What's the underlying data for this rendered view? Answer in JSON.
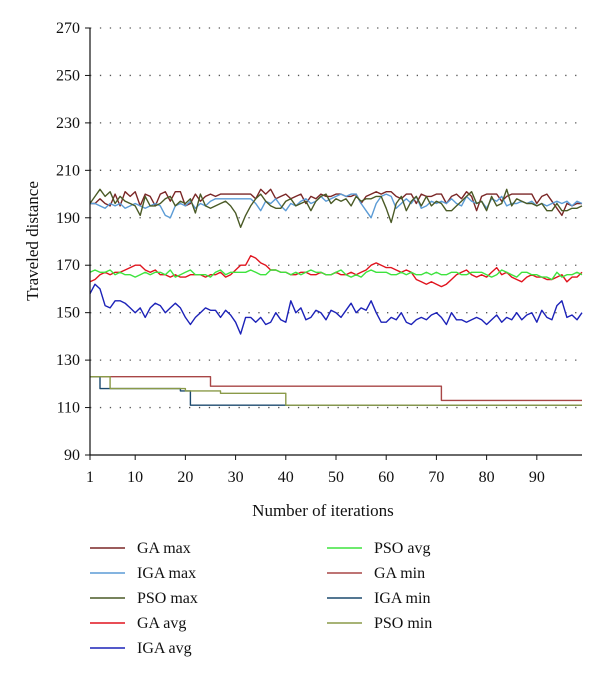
{
  "chart_data": {
    "type": "line",
    "title": "",
    "xlabel": "Number of iterations",
    "ylabel": "Traveled distance",
    "xlim": [
      1,
      99
    ],
    "ylim": [
      90,
      270
    ],
    "xticks": [
      1,
      10,
      20,
      30,
      40,
      50,
      60,
      70,
      80,
      90
    ],
    "yticks": [
      90,
      110,
      130,
      150,
      170,
      190,
      210,
      230,
      250,
      270
    ],
    "grid": "dotted horizontal",
    "legend_position": "bottom",
    "series": [
      {
        "name": "GA max",
        "color": "#7a2626",
        "values": [
          196,
          196,
          198,
          196,
          195,
          200,
          195,
          201,
          199,
          201,
          195,
          200,
          199,
          195,
          200,
          201,
          197,
          201,
          201,
          195,
          196,
          200,
          197,
          199,
          200,
          199,
          200,
          200,
          200,
          200,
          200,
          200,
          200,
          198,
          202,
          200,
          202,
          198,
          199,
          200,
          198,
          199,
          200,
          196,
          199,
          198,
          200,
          199,
          199,
          200,
          200,
          199,
          199,
          200,
          196,
          199,
          200,
          201,
          200,
          201,
          201,
          199,
          198,
          200,
          200,
          196,
          200,
          199,
          199,
          200,
          200,
          196,
          199,
          200,
          198,
          201,
          199,
          193,
          199,
          200,
          200,
          200,
          197,
          199,
          200,
          200,
          200,
          200,
          200,
          196,
          199,
          200,
          197,
          194,
          191,
          196,
          195,
          196,
          196
        ]
      },
      {
        "name": "IGA max",
        "color": "#5b9bd5",
        "values": [
          196,
          196,
          195,
          194,
          196,
          195,
          196,
          194,
          195,
          196,
          195,
          194,
          195,
          196,
          195,
          191,
          190,
          195,
          196,
          195,
          197,
          194,
          196,
          195,
          197,
          198,
          198,
          198,
          198,
          198,
          198,
          198,
          198,
          196,
          193,
          197,
          196,
          198,
          195,
          193,
          196,
          195,
          197,
          198,
          196,
          197,
          199,
          197,
          198,
          199,
          200,
          199,
          200,
          200,
          196,
          193,
          190,
          196,
          199,
          200,
          199,
          194,
          196,
          198,
          196,
          199,
          194,
          195,
          197,
          196,
          197,
          196,
          198,
          196,
          195,
          199,
          197,
          196,
          197,
          194,
          198,
          197,
          199,
          195,
          196,
          196,
          197,
          196,
          197,
          195,
          196,
          195,
          196,
          197,
          196,
          197,
          195,
          197,
          196
        ]
      },
      {
        "name": "PSO max",
        "color": "#4a5a26",
        "values": [
          196,
          199,
          202,
          199,
          201,
          196,
          199,
          197,
          196,
          195,
          191,
          199,
          195,
          195,
          196,
          198,
          199,
          195,
          197,
          196,
          198,
          192,
          200,
          195,
          194,
          195,
          196,
          197,
          195,
          192,
          186,
          191,
          195,
          198,
          200,
          197,
          195,
          194,
          194,
          197,
          198,
          195,
          196,
          197,
          193,
          197,
          199,
          200,
          196,
          198,
          197,
          198,
          195,
          199,
          197,
          198,
          198,
          199,
          199,
          194,
          188,
          196,
          199,
          193,
          197,
          199,
          195,
          199,
          195,
          197,
          196,
          193,
          193,
          195,
          197,
          199,
          201,
          196,
          197,
          193,
          199,
          195,
          196,
          202,
          195,
          198,
          197,
          196,
          196,
          195,
          196,
          193,
          193,
          196,
          193,
          193,
          194,
          194,
          195
        ]
      },
      {
        "name": "GA avg",
        "color": "#e0141e",
        "values": [
          163,
          164,
          166,
          167,
          166,
          167,
          167,
          168,
          169,
          170,
          170,
          168,
          167,
          168,
          166,
          166,
          165,
          166,
          165,
          165,
          166,
          166,
          166,
          165,
          166,
          166,
          167,
          165,
          166,
          168,
          170,
          170,
          174,
          173,
          171,
          170,
          168,
          168,
          167,
          167,
          166,
          166,
          167,
          167,
          166,
          166,
          167,
          166,
          166,
          167,
          166,
          166,
          167,
          166,
          167,
          168,
          170,
          171,
          170,
          169,
          169,
          168,
          167,
          168,
          167,
          164,
          163,
          162,
          163,
          162,
          161,
          162,
          164,
          166,
          167,
          168,
          166,
          165,
          166,
          165,
          167,
          169,
          166,
          167,
          165,
          164,
          163,
          165,
          166,
          165,
          165,
          164,
          164,
          165,
          166,
          163,
          165,
          165,
          167
        ]
      },
      {
        "name": "IGA avg",
        "color": "#1c22b8",
        "values": [
          158,
          162,
          160,
          153,
          152,
          155,
          155,
          154,
          152,
          150,
          152,
          148,
          152,
          154,
          153,
          150,
          152,
          154,
          152,
          148,
          145,
          148,
          150,
          152,
          151,
          151,
          148,
          151,
          149,
          146,
          141,
          148,
          148,
          146,
          148,
          145,
          146,
          150,
          147,
          146,
          155,
          150,
          152,
          147,
          148,
          151,
          150,
          147,
          151,
          150,
          148,
          151,
          154,
          150,
          152,
          151,
          155,
          150,
          146,
          146,
          148,
          147,
          150,
          146,
          145,
          147,
          148,
          147,
          149,
          150,
          148,
          145,
          150,
          147,
          147,
          146,
          147,
          148,
          147,
          145,
          147,
          149,
          146,
          148,
          147,
          150,
          147,
          149,
          150,
          146,
          151,
          148,
          147,
          153,
          155,
          148,
          149,
          147,
          150
        ]
      },
      {
        "name": "PSO avg",
        "color": "#3ee33e",
        "values": [
          167,
          168,
          167,
          167,
          168,
          166,
          167,
          166,
          166,
          165,
          166,
          167,
          166,
          167,
          167,
          166,
          168,
          165,
          166,
          167,
          168,
          166,
          166,
          166,
          165,
          167,
          168,
          166,
          167,
          167,
          167,
          167,
          168,
          167,
          166,
          166,
          168,
          168,
          167,
          167,
          166,
          167,
          166,
          167,
          168,
          167,
          167,
          166,
          166,
          167,
          168,
          166,
          165,
          166,
          165,
          167,
          168,
          167,
          167,
          167,
          166,
          166,
          167,
          166,
          167,
          166,
          166,
          167,
          166,
          167,
          166,
          166,
          167,
          167,
          166,
          166,
          167,
          167,
          167,
          166,
          165,
          166,
          168,
          167,
          166,
          165,
          167,
          167,
          166,
          166,
          165,
          165,
          164,
          167,
          165,
          166,
          166,
          167,
          166
        ]
      },
      {
        "name": "GA min",
        "color": "#a84646",
        "x": [
          1,
          25,
          25,
          71,
          71,
          99
        ],
        "y": [
          123,
          123,
          119,
          119,
          113,
          113
        ]
      },
      {
        "name": "IGA min",
        "color": "#1c4a6e",
        "x": [
          1,
          3,
          3,
          19,
          19,
          21,
          21,
          40,
          40,
          99
        ],
        "y": [
          123,
          123,
          118,
          118,
          117,
          117,
          111,
          111,
          111,
          111
        ]
      },
      {
        "name": "PSO min",
        "color": "#8a9a48",
        "x": [
          1,
          5,
          5,
          20,
          20,
          27,
          27,
          40,
          40,
          99
        ],
        "y": [
          123,
          123,
          118,
          118,
          117,
          117,
          116,
          116,
          111,
          111
        ]
      }
    ]
  }
}
